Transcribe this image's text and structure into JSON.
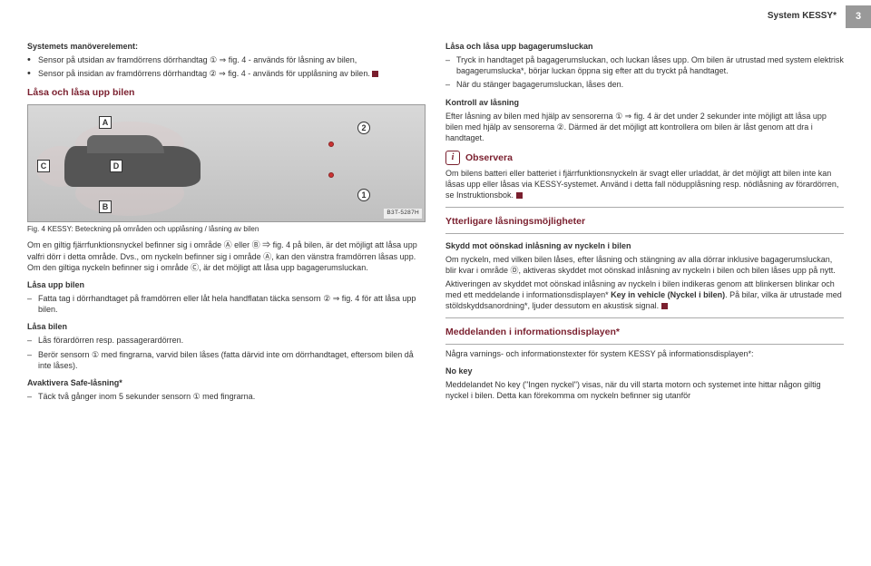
{
  "header": {
    "title": "System KESSY*",
    "page": "3"
  },
  "left": {
    "sys_title": "Systemets manöverelement:",
    "bullets": [
      "Sensor på utsidan av framdörrens dörrhandtag ① ⇒ fig. 4 - används för låsning av bilen,",
      "Sensor på insidan av framdörrens dörrhandtag ② ⇒ fig. 4 - används för upplåsning av bilen."
    ],
    "lock_title": "Låsa och låsa upp bilen",
    "fig_labels": {
      "A": "A",
      "B": "B",
      "C": "C",
      "D": "D",
      "n1": "1",
      "n2": "2",
      "code": "B3T-5287H"
    },
    "caption": "Fig. 4   KESSY: Beteckning på områden och upplåsning / låsning av bilen",
    "intro": "Om en giltig fjärrfunktionsnyckel befinner sig i område Ⓐ eller Ⓑ ⇒ fig. 4 på bilen, är det möjligt att låsa upp valfri dörr i detta område. Dvs., om nyckeln befinner sig i område Ⓐ, kan den vänstra framdörren låsas upp. Om den giltiga nyckeln befinner sig i område Ⓒ, är det möjligt att låsa upp bagagerumsluckan.",
    "unlock_h": "Låsa upp bilen",
    "unlock_items": [
      "Fatta tag i dörrhandtaget på framdörren eller låt hela handflatan täcka sensorn ② ⇒ fig. 4 för att låsa upp bilen."
    ],
    "lock_h": "Låsa bilen",
    "lock_items": [
      "Lås förardörren resp. passagerardörren.",
      "Berör sensorn ① med fingrarna, varvid bilen låses (fatta därvid inte om dörrhandtaget, eftersom bilen då inte låses)."
    ],
    "safe_h": "Avaktivera Safe-låsning*",
    "safe_items": [
      "Täck två gånger inom 5 sekunder sensorn ① med fingrarna."
    ]
  },
  "right": {
    "trunk_h": "Låsa och låsa upp bagagerumsluckan",
    "trunk_items": [
      "Tryck in handtaget på bagagerumsluckan, och luckan låses upp. Om bilen är utrustad med system elektrisk bagagerumslucka*, börjar luckan öppna sig efter att du tryckt på handtaget.",
      "När du stänger bagagerumsluckan, låses den."
    ],
    "ctrl_h": "Kontroll av låsning",
    "ctrl_p": "Efter låsning av bilen med hjälp av sensorerna ① ⇒ fig. 4 är det under 2 sekunder inte möjligt att låsa upp bilen med hjälp av sensorerna ②. Därmed är det möjligt att kontrollera om bilen är låst genom att dra i handtaget.",
    "obs_h": "Observera",
    "obs_p": "Om bilens batteri eller batteriet i fjärrfunktionsnyckeln är svagt eller urladdat, är det möjligt att bilen inte kan låsas upp eller låsas via KESSY-systemet. Använd i detta fall nödupplåsning resp. nödlåsning av förardörren, se Instruktionsbok.",
    "more_h": "Ytterligare låsningsmöjligheter",
    "prot_h": "Skydd mot oönskad inlåsning av nyckeln i bilen",
    "prot_p1": "Om nyckeln, med vilken bilen låses, efter låsning och stängning av alla dörrar inklusive bagagerumsluckan, blir kvar i område Ⓓ, aktiveras skyddet mot oönskad inlåsning av nyckeln i bilen och bilen låses upp på nytt.",
    "prot_p2a": "Aktiveringen av skyddet mot oönskad inlåsning av nyckeln i bilen indikeras genom att blinkersen blinkar och med ett meddelande i informationsdisplayen* ",
    "prot_key": "Key in vehicle (Nyckel i bilen)",
    "prot_p2b": ". På bilar, vilka är utrustade med stöldskyddsanordning*, ljuder dessutom en akustisk signal.",
    "msg_h": "Meddelanden i informationsdisplayen*",
    "msg_p": "Några varnings- och informationstexter för system KESSY på informationsdisplayen*:",
    "nokey_h": "No key",
    "nokey_p": "Meddelandet No key (\"Ingen nyckel\") visas, när du vill starta motorn och systemet inte hittar någon giltig nyckel i bilen. Detta kan förekomma om nyckeln befinner sig utanför"
  }
}
